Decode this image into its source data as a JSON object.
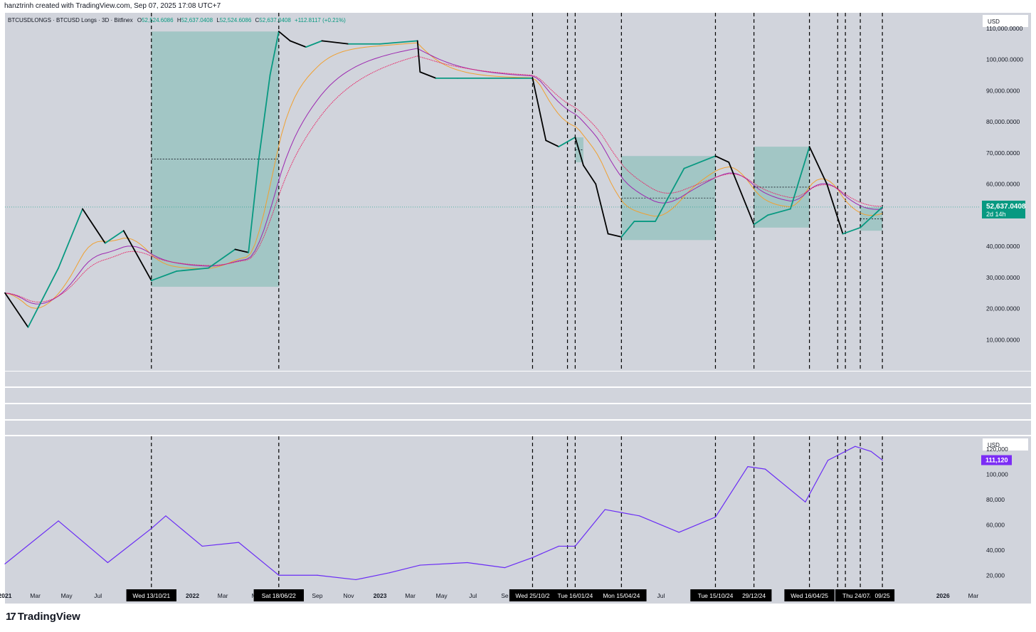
{
  "header": {
    "text": "hanztrinh created with TradingView.com, Sep 07, 2025 17:08 UTC+7"
  },
  "top_pane": {
    "legend_symbol": "BTCUSDLONGS · BTCUSD Longs · 3D · Bitfinex",
    "legend_o_label": "O",
    "legend_o": "52,524.6086",
    "legend_h_label": "H",
    "legend_h": "52,637.0408",
    "legend_l_label": "L",
    "legend_l": "52,524.6086",
    "legend_c_label": "C",
    "legend_c": "52,637.0408",
    "legend_change": "+112.8117 (+0.21%)",
    "currency": "USD",
    "last_price": "52,637.0408",
    "countdown": "2d 14h",
    "y_ticks": [
      "110,000.0000",
      "100,000.0000",
      "90,000.0000",
      "80,000.0000",
      "70,000.0000",
      "60,000.0000",
      "50,000.0000",
      "40,000.0000",
      "30,000.0000",
      "20,000.0000",
      "10,000.0000"
    ]
  },
  "bottom_pane": {
    "currency": "USD",
    "last_price": "111,120",
    "y_ticks": [
      "120,000",
      "100,000",
      "80,000",
      "60,000",
      "40,000",
      "20,000"
    ]
  },
  "x_axis": {
    "ticks": [
      "2021",
      "Mar",
      "May",
      "Jul",
      "2022",
      "Mar",
      "M",
      "Sep",
      "Nov",
      "2023",
      "Mar",
      "May",
      "Jul",
      "Se",
      "Jul",
      "S",
      "N",
      "2026",
      "Mar"
    ]
  },
  "vline_labels": [
    "Wed 13/10/21",
    "Sat 18/06/22",
    "Wed 25/10/2",
    "Tue 16/01/24",
    "Mon 15/04/24",
    "Tue 15/10/24",
    "29/12/24",
    "Wed 16/04/25",
    "Thu 24/07/25",
    "09/25"
  ],
  "footer": {
    "brand": "TradingView"
  },
  "colors": {
    "pane_bg": "#d1d4dc",
    "up": "#089981",
    "down": "#000000",
    "zone": "#7cb9b3",
    "ma_orange": "#f0a030",
    "ma_purple": "#9c27b0",
    "ma_red": "#e91e63",
    "btc_line": "#6a2cf5",
    "last_price_bg": "#089981",
    "btc_price_bg": "#7b2cf5"
  },
  "chart_data": {
    "type": "line",
    "series": [
      {
        "name": "BTCUSDLONGS",
        "x": [
          "2021-01-01",
          "2021-02-15",
          "2021-04-15",
          "2021-06-01",
          "2021-07-15",
          "2021-08-20",
          "2021-10-13",
          "2021-12-01",
          "2022-02-01",
          "2022-03-25",
          "2022-04-20",
          "2022-05-10",
          "2022-06-01",
          "2022-06-18",
          "2022-07-10",
          "2022-08-10",
          "2022-09-10",
          "2022-11-01",
          "2023-01-01",
          "2023-03-15",
          "2023-03-20",
          "2023-04-20",
          "2023-06-01",
          "2023-08-01",
          "2023-10-25",
          "2023-11-20",
          "2023-12-15",
          "2024-01-16",
          "2024-02-01",
          "2024-02-25",
          "2024-03-20",
          "2024-04-15",
          "2024-05-10",
          "2024-06-20",
          "2024-08-15",
          "2024-10-15",
          "2024-11-10",
          "2024-12-29",
          "2025-01-25",
          "2025-03-10",
          "2025-04-16",
          "2025-05-20",
          "2025-06-20",
          "2025-07-24",
          "2025-09-05"
        ],
        "values": [
          25000,
          14000,
          33000,
          52000,
          41000,
          45000,
          29000,
          32000,
          33000,
          39000,
          38000,
          68000,
          95000,
          109000,
          106000,
          104000,
          106000,
          105000,
          105000,
          106000,
          96000,
          94000,
          94000,
          94000,
          94000,
          74000,
          72000,
          75000,
          66000,
          60000,
          44000,
          43000,
          48000,
          48000,
          65000,
          69000,
          67000,
          47000,
          50000,
          52000,
          72000,
          60000,
          44000,
          46000,
          52600
        ]
      },
      {
        "name": "BTCUSD",
        "x": [
          "2021-01-01",
          "2021-04-15",
          "2021-07-20",
          "2021-10-13",
          "2021-11-10",
          "2022-01-20",
          "2022-04-01",
          "2022-06-18",
          "2022-09-01",
          "2022-11-15",
          "2023-01-20",
          "2023-03-20",
          "2023-06-20",
          "2023-09-01",
          "2023-10-25",
          "2023-12-15",
          "2024-01-16",
          "2024-03-14",
          "2024-05-20",
          "2024-08-05",
          "2024-10-15",
          "2024-12-17",
          "2025-01-20",
          "2025-04-08",
          "2025-05-22",
          "2025-07-14",
          "2025-08-14",
          "2025-09-05"
        ],
        "values": [
          29000,
          63000,
          30000,
          57000,
          67000,
          43000,
          46000,
          20000,
          20000,
          16500,
          22000,
          28000,
          30000,
          26000,
          34000,
          43000,
          43000,
          72000,
          67000,
          54000,
          66000,
          106000,
          104000,
          78000,
          111000,
          122000,
          118000,
          111120
        ]
      }
    ],
    "top_ylim": [
      0,
      115000
    ],
    "bottom_ylim": [
      10000,
      130000
    ],
    "xlim": [
      "2021-01-01",
      "2026-03-15"
    ],
    "zones": [
      {
        "from": "2021-10-13",
        "to": "2022-06-18",
        "low": 27000,
        "high": 109000,
        "mid": 68000
      },
      {
        "from": "2024-01-16",
        "to": "2024-02-01",
        "low": 67000,
        "high": 75000,
        "mid": 71000
      },
      {
        "from": "2024-04-15",
        "to": "2024-10-15",
        "low": 42000,
        "high": 69000,
        "mid": 55500
      },
      {
        "from": "2024-12-29",
        "to": "2025-04-16",
        "low": 46000,
        "high": 72000,
        "mid": 59000
      },
      {
        "from": "2025-07-24",
        "to": "2025-09-05",
        "low": 45000,
        "high": 52600,
        "mid": 48800
      }
    ],
    "vlines": [
      "2021-10-13",
      "2022-06-18",
      "2023-10-25",
      "2024-01-01",
      "2024-01-16",
      "2024-04-15",
      "2024-10-15",
      "2024-12-29",
      "2025-04-16",
      "2025-06-10",
      "2025-06-25",
      "2025-07-24",
      "2025-09-05"
    ]
  }
}
